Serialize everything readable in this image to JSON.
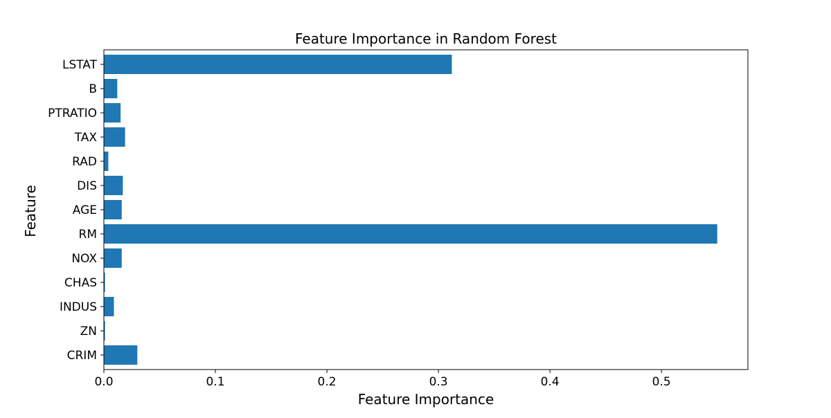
{
  "chart_data": {
    "type": "bar",
    "orientation": "horizontal",
    "title": "Feature Importance in Random Forest",
    "xlabel": "Feature Importance",
    "ylabel": "Feature",
    "categories": [
      "CRIM",
      "ZN",
      "INDUS",
      "CHAS",
      "NOX",
      "RM",
      "AGE",
      "DIS",
      "RAD",
      "TAX",
      "PTRATIO",
      "B",
      "LSTAT"
    ],
    "values": [
      0.03,
      0.001,
      0.009,
      0.001,
      0.016,
      0.55,
      0.016,
      0.017,
      0.004,
      0.019,
      0.015,
      0.012,
      0.312
    ],
    "xlim": [
      0,
      0.5775
    ],
    "xticks": [
      0.0,
      0.1,
      0.2,
      0.3,
      0.4,
      0.5
    ],
    "xtick_labels": [
      "0.0",
      "0.1",
      "0.2",
      "0.3",
      "0.4",
      "0.5"
    ],
    "grid": false,
    "bar_color": "#1f77b4"
  }
}
